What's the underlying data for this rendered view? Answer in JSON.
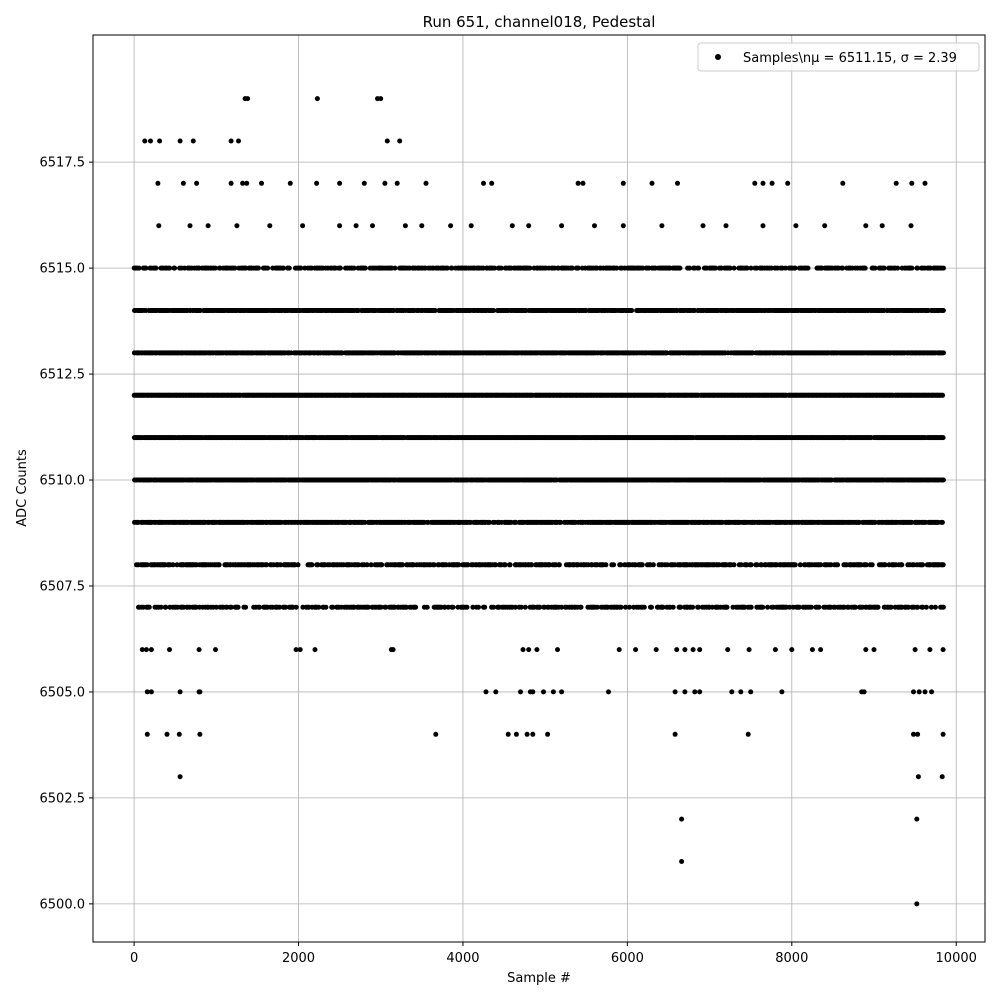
{
  "chart_data": {
    "type": "scatter",
    "title": "Run 651, channel018, Pedestal",
    "xlabel": "Sample #",
    "ylabel": "ADC Counts",
    "xlim": [
      -500,
      10350
    ],
    "ylim": [
      6499.1,
      6520.5
    ],
    "xticks": [
      0,
      2000,
      4000,
      6000,
      8000,
      10000
    ],
    "yticks": [
      6500.0,
      6502.5,
      6505.0,
      6507.5,
      6510.0,
      6512.5,
      6515.0,
      6517.5
    ],
    "xtick_labels": [
      "0",
      "2000",
      "4000",
      "6000",
      "8000",
      "10000"
    ],
    "ytick_labels": [
      "6500.0",
      "6502.5",
      "6505.0",
      "6507.5",
      "6510.0",
      "6512.5",
      "6515.0",
      "6517.5"
    ],
    "grid": true,
    "legend": {
      "position": "top-right",
      "marker": "●"
    },
    "series": [
      {
        "name": "Samples\\nμ = 6511.15, σ = 2.39",
        "color": "#000000",
        "x_range": [
          0,
          9840
        ],
        "dense_levels": [
          6507,
          6508,
          6509,
          6510,
          6511,
          6512,
          6513,
          6514,
          6515
        ],
        "dense_level_fill": [
          0.5,
          0.55,
          0.85,
          0.95,
          0.98,
          0.99,
          0.9,
          0.85,
          0.55
        ],
        "sparse_points": {
          "x": [
            130,
            200,
            310,
            560,
            720,
            1180,
            1270,
            1350,
            1380,
            2230,
            2960,
            3000,
            3230,
            3080,
            290,
            600,
            760,
            1180,
            1320,
            1370,
            1550,
            1900,
            2220,
            2500,
            2800,
            3050,
            3200,
            3550,
            4250,
            4350,
            5400,
            5460,
            5950,
            6300,
            6610,
            7550,
            7650,
            7760,
            7950,
            8620,
            9270,
            9460,
            9620,
            300,
            680,
            900,
            1250,
            1650,
            2050,
            2500,
            2700,
            2900,
            3300,
            3500,
            3850,
            4100,
            4600,
            4800,
            5200,
            5600,
            5950,
            6420,
            6920,
            7200,
            7650,
            8050,
            8400,
            8900,
            9100,
            9450,
            100,
            150,
            210,
            430,
            790,
            990,
            1970,
            2020,
            2200,
            3130,
            3150,
            4730,
            4800,
            4900,
            5150,
            5900,
            6100,
            6350,
            6600,
            6700,
            6800,
            6880,
            7220,
            7480,
            7800,
            8000,
            8250,
            8350,
            8900,
            9000,
            9500,
            9680,
            9840,
            160,
            210,
            560,
            790,
            800,
            4280,
            4400,
            4700,
            4820,
            4850,
            4980,
            5100,
            5200,
            5770,
            6580,
            6700,
            6820,
            6880,
            7270,
            7380,
            7500,
            7880,
            8850,
            8880,
            9480,
            9550,
            9620,
            9700,
            160,
            400,
            550,
            800,
            3670,
            4550,
            4650,
            4780,
            4850,
            5030,
            6580,
            7470,
            9480,
            9530,
            9840,
            560,
            9540,
            9830,
            6660,
            9520,
            6660,
            9520
          ],
          "y": [
            6518,
            6518,
            6518,
            6518,
            6518,
            6518,
            6518,
            6519,
            6519,
            6519,
            6519,
            6519,
            6518,
            6518,
            6517,
            6517,
            6517,
            6517,
            6517,
            6517,
            6517,
            6517,
            6517,
            6517,
            6517,
            6517,
            6517,
            6517,
            6517,
            6517,
            6517,
            6517,
            6517,
            6517,
            6517,
            6517,
            6517,
            6517,
            6517,
            6517,
            6517,
            6517,
            6517,
            6516,
            6516,
            6516,
            6516,
            6516,
            6516,
            6516,
            6516,
            6516,
            6516,
            6516,
            6516,
            6516,
            6516,
            6516,
            6516,
            6516,
            6516,
            6516,
            6516,
            6516,
            6516,
            6516,
            6516,
            6516,
            6516,
            6516,
            6506,
            6506,
            6506,
            6506,
            6506,
            6506,
            6506,
            6506,
            6506,
            6506,
            6506,
            6506,
            6506,
            6506,
            6506,
            6506,
            6506,
            6506,
            6506,
            6506,
            6506,
            6506,
            6506,
            6506,
            6506,
            6506,
            6506,
            6506,
            6506,
            6506,
            6506,
            6506,
            6506,
            6505,
            6505,
            6505,
            6505,
            6505,
            6505,
            6505,
            6505,
            6505,
            6505,
            6505,
            6505,
            6505,
            6505,
            6505,
            6505,
            6505,
            6505,
            6505,
            6505,
            6505,
            6505,
            6505,
            6505,
            6505,
            6505,
            6505,
            6505,
            6504,
            6504,
            6504,
            6504,
            6504,
            6504,
            6504,
            6504,
            6504,
            6504,
            6504,
            6504,
            6504,
            6504,
            6504,
            6503,
            6503,
            6503,
            6502,
            6502,
            6501,
            6500
          ]
        }
      }
    ]
  }
}
